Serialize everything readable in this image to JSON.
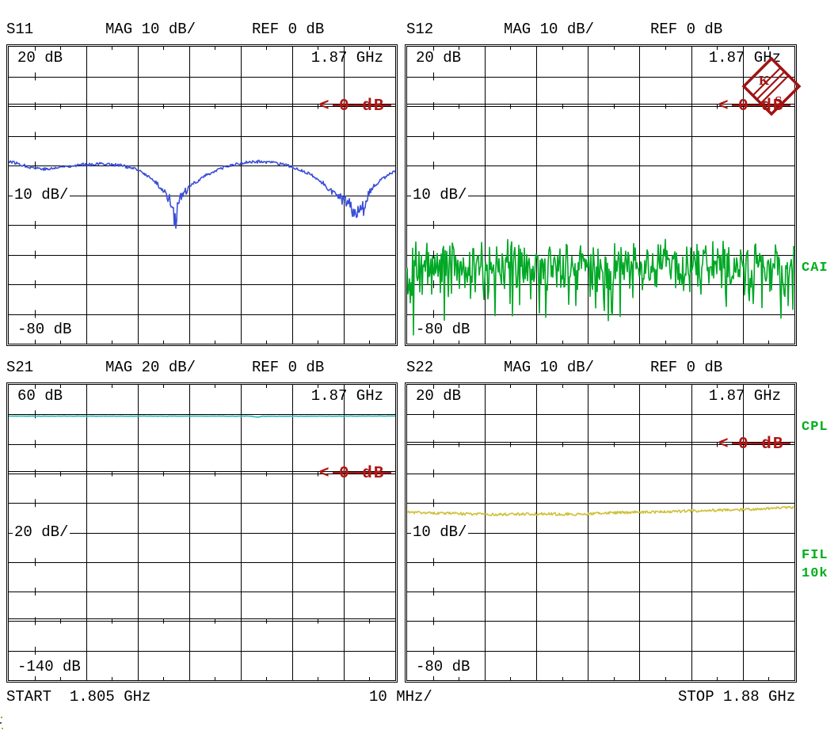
{
  "device": {
    "type": "vector-network-analyzer-screen",
    "logo": {
      "letter_1": "K",
      "letter_2": "S",
      "color": "#a01313"
    }
  },
  "status_labels": {
    "cal_interpolated": "CAI",
    "coupled_channels": "CPL",
    "filter": "FIL",
    "if_bandwidth": "10k",
    "color": "#00ae1e"
  },
  "axis": {
    "start": "START  1.805 GHz",
    "per_div": "10 MHz/",
    "stop": "STOP 1.88 GHz"
  },
  "panels": [
    {
      "name": "S11",
      "mag_label": "MAG 10 dB/",
      "ref_label": "REF 0 dB",
      "top_label": "20 dB",
      "scale_label": "10 dB/",
      "bottom_label": "-80 dB",
      "marker_freq": "1.87 GHz",
      "ref_marker_arrow": "<",
      "ref_marker_text": "0 dB"
    },
    {
      "name": "S12",
      "mag_label": "MAG 10 dB/",
      "ref_label": "REF 0 dB",
      "top_label": "20 dB",
      "scale_label": "10 dB/",
      "bottom_label": "-80 dB",
      "marker_freq": "1.87 GHz",
      "ref_marker_arrow": "<",
      "ref_marker_text": "0 dB"
    },
    {
      "name": "S21",
      "mag_label": "MAG 20 dB/",
      "ref_label": "REF 0 dB",
      "top_label": "60 dB",
      "scale_label": "20 dB/",
      "bottom_label": "-140 dB",
      "marker_freq": "1.87 GHz",
      "ref_marker_arrow": "<",
      "ref_marker_text": "0 dB"
    },
    {
      "name": "S22",
      "mag_label": "MAG 10 dB/",
      "ref_label": "REF 0 dB",
      "top_label": "20 dB",
      "scale_label": "10 dB/",
      "bottom_label": "-80 dB",
      "marker_freq": "1.87 GHz",
      "ref_marker_arrow": "<",
      "ref_marker_text": "0 dB"
    }
  ],
  "chart_data": [
    {
      "type": "line",
      "title": "S11 MAG 10 dB/ REF 0 dB",
      "x_start_ghz": 1.805,
      "x_stop_ghz": 1.88,
      "x_mhz_per_div": 10,
      "x_divisions": 7.5,
      "y_top_db": 20,
      "y_bottom_db": -80,
      "y_db_per_div": 10,
      "ref_level_db": 0,
      "marker_freq_ghz": 1.87,
      "trace_color": "#3b4fd8",
      "noise_db": 0.5,
      "dip_noise": true,
      "extra_grid_line_db": null,
      "series": [
        {
          "name": "S11 magnitude (dB)",
          "points_ghz_db": [
            [
              1.805,
              -18.5
            ],
            [
              1.809,
              -20.5
            ],
            [
              1.8125,
              -21.3
            ],
            [
              1.816,
              -20.3
            ],
            [
              1.82,
              -19.6
            ],
            [
              1.8235,
              -19.4
            ],
            [
              1.827,
              -20.0
            ],
            [
              1.83,
              -21.5
            ],
            [
              1.832,
              -23.5
            ],
            [
              1.834,
              -26.5
            ],
            [
              1.8355,
              -29.5
            ],
            [
              1.8368,
              -33.0
            ],
            [
              1.8373,
              -39.5
            ],
            [
              1.838,
              -32.0
            ],
            [
              1.8395,
              -28.5
            ],
            [
              1.841,
              -26.0
            ],
            [
              1.843,
              -23.5
            ],
            [
              1.8455,
              -21.5
            ],
            [
              1.848,
              -20.0
            ],
            [
              1.851,
              -19.0
            ],
            [
              1.8535,
              -18.7
            ],
            [
              1.856,
              -19.0
            ],
            [
              1.8585,
              -19.8
            ],
            [
              1.861,
              -21.0
            ],
            [
              1.8635,
              -23.0
            ],
            [
              1.866,
              -26.0
            ],
            [
              1.868,
              -29.0
            ],
            [
              1.8695,
              -31.5
            ],
            [
              1.871,
              -33.0
            ],
            [
              1.8722,
              -36.0
            ],
            [
              1.873,
              -33.5
            ],
            [
              1.874,
              -34.5
            ],
            [
              1.8748,
              -30.0
            ],
            [
              1.876,
              -27.0
            ],
            [
              1.8775,
              -24.5
            ],
            [
              1.879,
              -22.8
            ],
            [
              1.88,
              -22.0
            ]
          ]
        }
      ]
    },
    {
      "type": "line",
      "title": "S12 MAG 10 dB/ REF 0 dB",
      "x_start_ghz": 1.805,
      "x_stop_ghz": 1.88,
      "x_mhz_per_div": 10,
      "x_divisions": 7.5,
      "y_top_db": 20,
      "y_bottom_db": -80,
      "y_db_per_div": 10,
      "ref_level_db": 0,
      "marker_freq_ghz": 1.87,
      "trace_color": "#00a826",
      "extra_grid_line_db": null,
      "noise_model": {
        "base": -46,
        "uniform": 10,
        "mid": 9,
        "spike": 18,
        "spike_pow": 10,
        "floor": -78
      },
      "series": [
        {
          "name": "S12 magnitude (broadband noise, mean approx -56 dB, band -47 to -70 dB, spikes to -75 dB)",
          "points_ghz_db": [
            [
              1.805,
              -56
            ],
            [
              1.88,
              -56
            ]
          ]
        }
      ]
    },
    {
      "type": "line",
      "title": "S21 MAG 20 dB/ REF 0 dB",
      "x_start_ghz": 1.805,
      "x_stop_ghz": 1.88,
      "x_mhz_per_div": 10,
      "x_divisions": 7.5,
      "y_top_db": 60,
      "y_bottom_db": -140,
      "y_db_per_div": 20,
      "ref_level_db": 0,
      "marker_freq_ghz": 1.87,
      "trace_color": "#25b7b7",
      "noise_db": 0.12,
      "dip_noise": false,
      "extra_grid_line_db": -100,
      "series": [
        {
          "name": "S21 magnitude (dB)",
          "points_ghz_db": [
            [
              1.805,
              38.8
            ],
            [
              1.852,
              38.8
            ],
            [
              1.8533,
              38.1
            ],
            [
              1.8542,
              38.7
            ],
            [
              1.88,
              38.9
            ]
          ]
        }
      ]
    },
    {
      "type": "line",
      "title": "S22 MAG 10 dB/ REF 0 dB",
      "x_start_ghz": 1.805,
      "x_stop_ghz": 1.88,
      "x_mhz_per_div": 10,
      "x_divisions": 7.5,
      "y_top_db": 20,
      "y_bottom_db": -80,
      "y_db_per_div": 10,
      "ref_level_db": 0,
      "marker_freq_ghz": 1.87,
      "trace_color": "#cfc13a",
      "noise_db": 0.45,
      "dip_noise": false,
      "extra_grid_line_db": null,
      "series": [
        {
          "name": "S22 magnitude (dB)",
          "points_ghz_db": [
            [
              1.805,
              -23.2
            ],
            [
              1.815,
              -23.6
            ],
            [
              1.8225,
              -23.9
            ],
            [
              1.83,
              -23.7
            ],
            [
              1.8375,
              -23.8
            ],
            [
              1.845,
              -23.3
            ],
            [
              1.8525,
              -23.1
            ],
            [
              1.86,
              -22.7
            ],
            [
              1.8675,
              -22.4
            ],
            [
              1.874,
              -22.0
            ],
            [
              1.88,
              -21.5
            ]
          ]
        }
      ]
    }
  ]
}
